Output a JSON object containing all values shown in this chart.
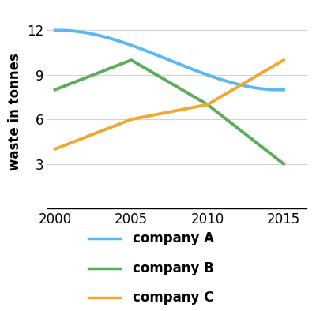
{
  "years": [
    2000,
    2005,
    2010,
    2015
  ],
  "company_A": [
    12,
    11,
    9,
    8
  ],
  "company_B": [
    8,
    10,
    7,
    3
  ],
  "company_C": [
    4,
    6,
    7,
    10
  ],
  "colors": {
    "company_A": "#5bb8f5",
    "company_B": "#5aad5a",
    "company_C": "#f0a830"
  },
  "ylabel": "waste in tonnes",
  "ylim": [
    0,
    13
  ],
  "yticks": [
    3,
    6,
    9,
    12
  ],
  "xlim": [
    1999.5,
    2016.5
  ],
  "xticks": [
    2000,
    2005,
    2010,
    2015
  ],
  "legend_labels": [
    "company A",
    "company B",
    "company C"
  ],
  "line_width": 2.8,
  "legend_fontsize": 12,
  "axis_label_fontsize": 12,
  "tick_fontsize": 12
}
